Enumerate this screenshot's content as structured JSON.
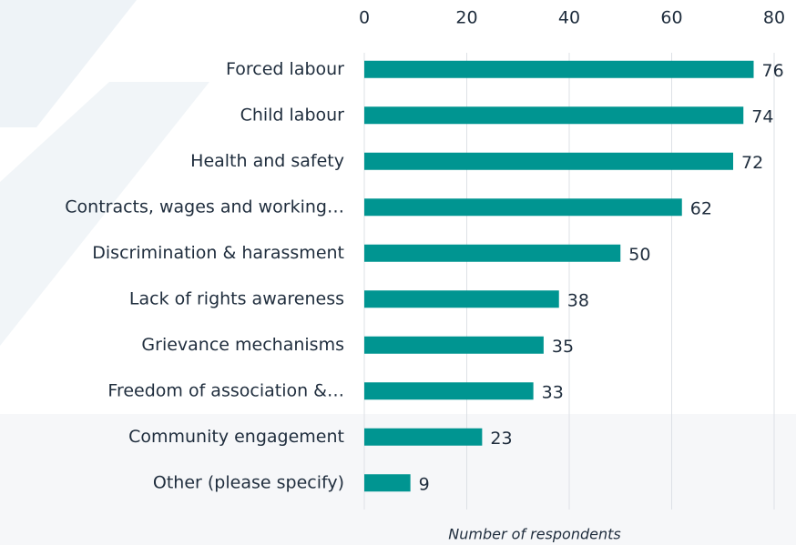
{
  "chart_data": {
    "type": "bar",
    "orientation": "horizontal",
    "x_label": "Number of respondents",
    "categories": [
      "Forced labour",
      "Child labour",
      "Health and safety",
      "Contracts, wages and working…",
      "Discrimination & harassment",
      "Lack of rights awareness",
      "Grievance mechanisms",
      "Freedom of association &…",
      "Community engagement",
      "Other (please specify)"
    ],
    "values": [
      76,
      74,
      72,
      62,
      50,
      38,
      35,
      33,
      23,
      9
    ],
    "color": "#009591",
    "xlim": [
      0,
      80
    ],
    "xticks": [
      0,
      20,
      40,
      60,
      80
    ],
    "grid": true
  }
}
